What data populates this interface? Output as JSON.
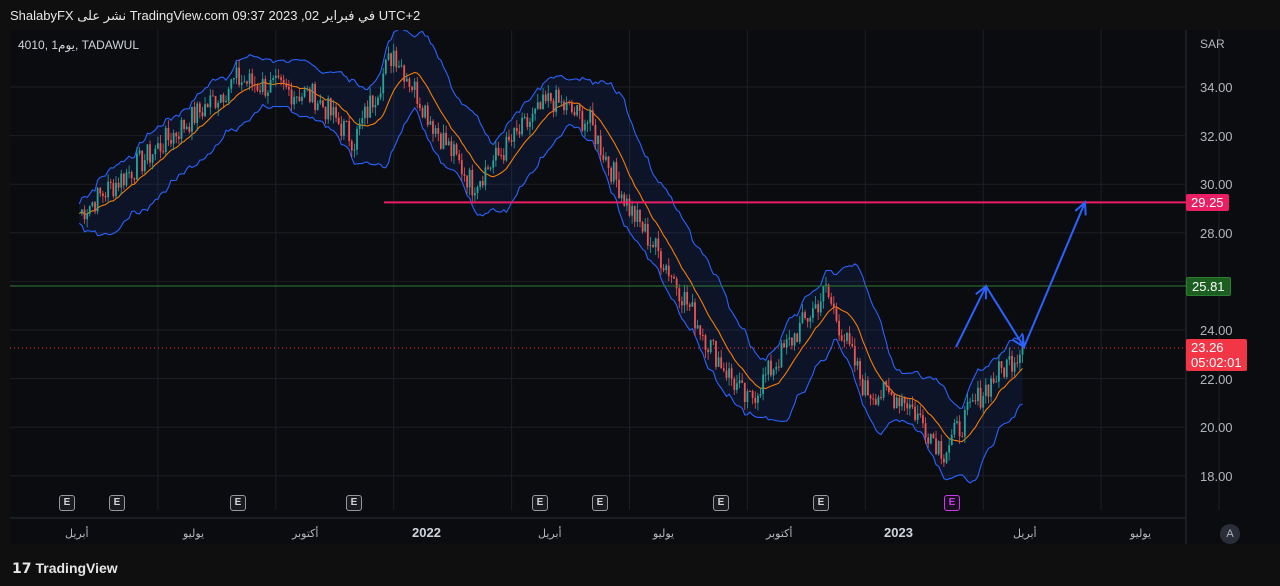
{
  "header": {
    "publish_text": "ShalabyFX نشر على TradingView.com في فبراير 02, 2023 09:37 UTC+2"
  },
  "chart": {
    "symbol": "4010, 1يوم, TADAWUL",
    "currency": "SAR",
    "price_ticks": [
      "34.00",
      "32.00",
      "30.00",
      "28.00",
      "24.00",
      "22.00",
      "20.00",
      "18.00"
    ],
    "time_ticks": [
      "أبريل",
      "يوليو",
      "أكتوبر",
      "2022",
      "أبريل",
      "يوليو",
      "أكتوبر",
      "2023",
      "أبريل",
      "يوليو"
    ],
    "resistance_label": "29.25",
    "mid_level_label": "25.81",
    "current_price": "23.26",
    "countdown": "05:02:01",
    "earnings_marker": "E",
    "auto_scale": "A",
    "colors": {
      "resistance": "#e91e63",
      "mid_level": "#2e7d32",
      "current": "#f23645",
      "bollinger": "#2962ff",
      "ma": "#f57c00",
      "arrows": "#2962ff"
    }
  },
  "footer": {
    "brand": "TradingView",
    "brand_icon": "tradingview-logo-icon"
  },
  "chart_data": {
    "type": "line",
    "currency": "SAR",
    "ylim": [
      17,
      36.5
    ],
    "horizontal_levels": [
      29.25,
      25.81,
      23.26
    ],
    "price_path": [
      {
        "t": "2021-02",
        "p": 28.8
      },
      {
        "t": "2021-04",
        "p": 31.5
      },
      {
        "t": "2021-06",
        "p": 34.3
      },
      {
        "t": "2021-08",
        "p": 33.6
      },
      {
        "t": "2021-09",
        "p": 31.8
      },
      {
        "t": "2021-10",
        "p": 35.5
      },
      {
        "t": "2021-11",
        "p": 32.5
      },
      {
        "t": "2021-12",
        "p": 30.0
      },
      {
        "t": "2022-02",
        "p": 33.5
      },
      {
        "t": "2022-03",
        "p": 32.5
      },
      {
        "t": "2022-04",
        "p": 29.0
      },
      {
        "t": "2022-05",
        "p": 26.5
      },
      {
        "t": "2022-06",
        "p": 23.5
      },
      {
        "t": "2022-07",
        "p": 21.0
      },
      {
        "t": "2022-09",
        "p": 25.6
      },
      {
        "t": "2022-10",
        "p": 21.5
      },
      {
        "t": "2022-11",
        "p": 21.2
      },
      {
        "t": "2022-12",
        "p": 19.0
      },
      {
        "t": "2023-01",
        "p": 21.5
      },
      {
        "t": "2023-02",
        "p": 23.3
      }
    ],
    "projection": [
      23.3,
      25.8,
      23.3,
      29.25
    ]
  }
}
